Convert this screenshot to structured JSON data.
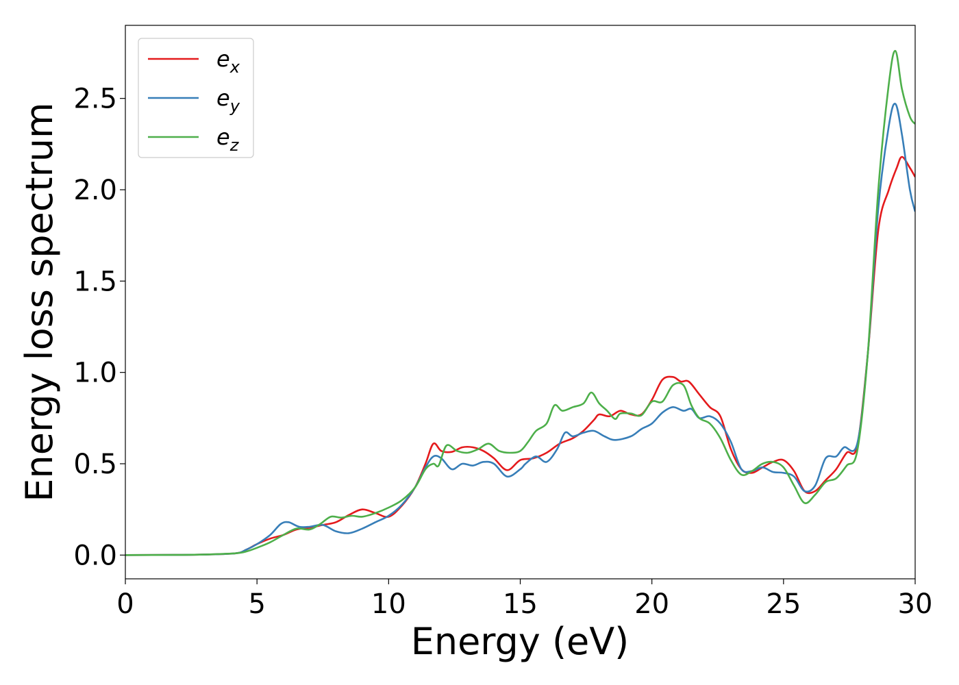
{
  "chart_data": {
    "type": "line",
    "xlabel": "Energy (eV)",
    "ylabel": "Energy loss spectrum",
    "xlim": [
      0,
      30
    ],
    "ylim": [
      -0.13,
      2.9
    ],
    "xticks": [
      0,
      5,
      10,
      15,
      20,
      25,
      30
    ],
    "xtick_labels": [
      "0",
      "5",
      "10",
      "15",
      "20",
      "25",
      "30"
    ],
    "yticks": [
      0.0,
      0.5,
      1.0,
      1.5,
      2.0,
      2.5
    ],
    "ytick_labels": [
      "0.0",
      "0.5",
      "1.0",
      "1.5",
      "2.0",
      "2.5"
    ],
    "grid": false,
    "legend_position": "top-left",
    "series": [
      {
        "name": "e",
        "sub": "x",
        "color": "#e41a1c",
        "points": [
          [
            0,
            0
          ],
          [
            2,
            0.001
          ],
          [
            3,
            0.003
          ],
          [
            4.2,
            0.01
          ],
          [
            4.6,
            0.03
          ],
          [
            5,
            0.06
          ],
          [
            5.5,
            0.09
          ],
          [
            6,
            0.11
          ],
          [
            6.5,
            0.14
          ],
          [
            7,
            0.15
          ],
          [
            7.5,
            0.165
          ],
          [
            8,
            0.18
          ],
          [
            8.5,
            0.22
          ],
          [
            9,
            0.25
          ],
          [
            9.5,
            0.23
          ],
          [
            10,
            0.21
          ],
          [
            10.5,
            0.27
          ],
          [
            11,
            0.37
          ],
          [
            11.4,
            0.5
          ],
          [
            11.7,
            0.61
          ],
          [
            12,
            0.57
          ],
          [
            12.4,
            0.565
          ],
          [
            12.8,
            0.59
          ],
          [
            13.2,
            0.59
          ],
          [
            13.6,
            0.57
          ],
          [
            14,
            0.53
          ],
          [
            14.5,
            0.465
          ],
          [
            15,
            0.52
          ],
          [
            15.5,
            0.53
          ],
          [
            16,
            0.56
          ],
          [
            16.5,
            0.61
          ],
          [
            17,
            0.64
          ],
          [
            17.4,
            0.68
          ],
          [
            17.8,
            0.74
          ],
          [
            18,
            0.77
          ],
          [
            18.4,
            0.76
          ],
          [
            18.8,
            0.79
          ],
          [
            19.2,
            0.77
          ],
          [
            19.6,
            0.77
          ],
          [
            20,
            0.85
          ],
          [
            20.4,
            0.96
          ],
          [
            20.8,
            0.975
          ],
          [
            21.1,
            0.95
          ],
          [
            21.4,
            0.95
          ],
          [
            21.8,
            0.88
          ],
          [
            22.2,
            0.81
          ],
          [
            22.6,
            0.76
          ],
          [
            23,
            0.58
          ],
          [
            23.4,
            0.47
          ],
          [
            23.8,
            0.45
          ],
          [
            24.2,
            0.48
          ],
          [
            24.6,
            0.51
          ],
          [
            25,
            0.52
          ],
          [
            25.4,
            0.46
          ],
          [
            25.8,
            0.35
          ],
          [
            26.2,
            0.35
          ],
          [
            26.6,
            0.41
          ],
          [
            27,
            0.47
          ],
          [
            27.4,
            0.56
          ],
          [
            27.8,
            0.6
          ],
          [
            28.2,
            1.1
          ],
          [
            28.6,
            1.78
          ],
          [
            29,
            2.0
          ],
          [
            29.3,
            2.12
          ],
          [
            29.5,
            2.18
          ],
          [
            29.8,
            2.12
          ],
          [
            30,
            2.07
          ]
        ]
      },
      {
        "name": "e",
        "sub": "y",
        "color": "#377eb8",
        "points": [
          [
            0,
            0
          ],
          [
            2,
            0.001
          ],
          [
            3,
            0.003
          ],
          [
            4.2,
            0.01
          ],
          [
            4.6,
            0.03
          ],
          [
            5,
            0.06
          ],
          [
            5.5,
            0.11
          ],
          [
            5.9,
            0.17
          ],
          [
            6.2,
            0.18
          ],
          [
            6.6,
            0.155
          ],
          [
            7,
            0.155
          ],
          [
            7.5,
            0.165
          ],
          [
            8,
            0.13
          ],
          [
            8.5,
            0.12
          ],
          [
            9,
            0.145
          ],
          [
            9.5,
            0.18
          ],
          [
            10,
            0.215
          ],
          [
            10.5,
            0.275
          ],
          [
            11,
            0.37
          ],
          [
            11.4,
            0.48
          ],
          [
            11.7,
            0.54
          ],
          [
            12,
            0.53
          ],
          [
            12.4,
            0.47
          ],
          [
            12.8,
            0.5
          ],
          [
            13.2,
            0.49
          ],
          [
            13.6,
            0.51
          ],
          [
            14,
            0.5
          ],
          [
            14.5,
            0.43
          ],
          [
            15,
            0.47
          ],
          [
            15.2,
            0.5
          ],
          [
            15.6,
            0.54
          ],
          [
            16,
            0.51
          ],
          [
            16.4,
            0.58
          ],
          [
            16.7,
            0.67
          ],
          [
            17,
            0.65
          ],
          [
            17.4,
            0.67
          ],
          [
            17.8,
            0.68
          ],
          [
            18.2,
            0.65
          ],
          [
            18.6,
            0.63
          ],
          [
            19.2,
            0.65
          ],
          [
            19.6,
            0.69
          ],
          [
            20,
            0.72
          ],
          [
            20.4,
            0.78
          ],
          [
            20.8,
            0.81
          ],
          [
            21.2,
            0.79
          ],
          [
            21.5,
            0.8
          ],
          [
            21.8,
            0.75
          ],
          [
            22.2,
            0.76
          ],
          [
            22.6,
            0.72
          ],
          [
            23,
            0.62
          ],
          [
            23.4,
            0.47
          ],
          [
            23.8,
            0.46
          ],
          [
            24.2,
            0.48
          ],
          [
            24.6,
            0.455
          ],
          [
            25,
            0.45
          ],
          [
            25.4,
            0.43
          ],
          [
            25.8,
            0.35
          ],
          [
            26.2,
            0.38
          ],
          [
            26.6,
            0.53
          ],
          [
            27,
            0.54
          ],
          [
            27.3,
            0.59
          ],
          [
            27.8,
            0.61
          ],
          [
            28.2,
            1.1
          ],
          [
            28.6,
            1.9
          ],
          [
            29,
            2.35
          ],
          [
            29.25,
            2.47
          ],
          [
            29.5,
            2.3
          ],
          [
            29.8,
            2.0
          ],
          [
            30,
            1.88
          ]
        ]
      },
      {
        "name": "e",
        "sub": "z",
        "color": "#4daf4a",
        "points": [
          [
            0,
            0
          ],
          [
            2,
            0.001
          ],
          [
            3,
            0.003
          ],
          [
            4.2,
            0.01
          ],
          [
            4.6,
            0.02
          ],
          [
            5,
            0.04
          ],
          [
            5.5,
            0.07
          ],
          [
            6,
            0.11
          ],
          [
            6.5,
            0.145
          ],
          [
            7,
            0.14
          ],
          [
            7.4,
            0.17
          ],
          [
            7.8,
            0.21
          ],
          [
            8.2,
            0.205
          ],
          [
            8.6,
            0.215
          ],
          [
            9,
            0.21
          ],
          [
            9.5,
            0.23
          ],
          [
            10,
            0.26
          ],
          [
            10.5,
            0.3
          ],
          [
            11,
            0.37
          ],
          [
            11.4,
            0.47
          ],
          [
            11.7,
            0.5
          ],
          [
            11.9,
            0.49
          ],
          [
            12.2,
            0.6
          ],
          [
            12.6,
            0.57
          ],
          [
            13,
            0.56
          ],
          [
            13.4,
            0.58
          ],
          [
            13.8,
            0.61
          ],
          [
            14.2,
            0.57
          ],
          [
            14.6,
            0.56
          ],
          [
            15,
            0.57
          ],
          [
            15.3,
            0.62
          ],
          [
            15.6,
            0.68
          ],
          [
            16,
            0.72
          ],
          [
            16.3,
            0.82
          ],
          [
            16.6,
            0.79
          ],
          [
            17,
            0.81
          ],
          [
            17.4,
            0.83
          ],
          [
            17.7,
            0.89
          ],
          [
            18,
            0.83
          ],
          [
            18.3,
            0.79
          ],
          [
            18.6,
            0.745
          ],
          [
            18.8,
            0.775
          ],
          [
            19.2,
            0.775
          ],
          [
            19.6,
            0.765
          ],
          [
            20,
            0.84
          ],
          [
            20.4,
            0.84
          ],
          [
            20.8,
            0.93
          ],
          [
            21.2,
            0.93
          ],
          [
            21.5,
            0.82
          ],
          [
            21.8,
            0.75
          ],
          [
            22.2,
            0.72
          ],
          [
            22.6,
            0.64
          ],
          [
            23,
            0.52
          ],
          [
            23.4,
            0.44
          ],
          [
            23.8,
            0.46
          ],
          [
            24.2,
            0.5
          ],
          [
            24.6,
            0.51
          ],
          [
            25,
            0.48
          ],
          [
            25.4,
            0.38
          ],
          [
            25.8,
            0.285
          ],
          [
            26.2,
            0.33
          ],
          [
            26.6,
            0.4
          ],
          [
            27,
            0.42
          ],
          [
            27.4,
            0.49
          ],
          [
            27.8,
            0.57
          ],
          [
            28.2,
            1.1
          ],
          [
            28.6,
            2.0
          ],
          [
            29,
            2.58
          ],
          [
            29.25,
            2.76
          ],
          [
            29.5,
            2.55
          ],
          [
            29.8,
            2.4
          ],
          [
            30,
            2.36
          ]
        ]
      }
    ]
  }
}
